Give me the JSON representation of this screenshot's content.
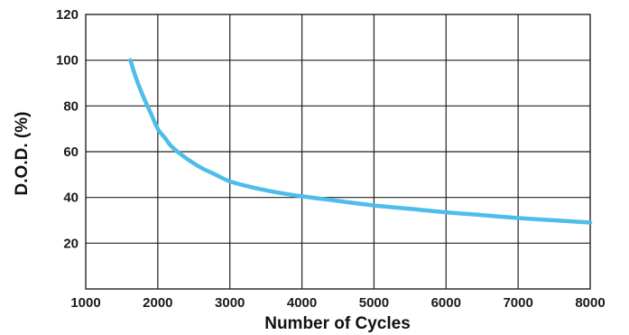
{
  "chart_data": {
    "type": "line",
    "title": "",
    "xlabel": "Number of Cycles",
    "ylabel": "D.O.D.  (%)",
    "xlim": [
      1000,
      8000
    ],
    "ylim": [
      0,
      120
    ],
    "xticks": [
      1000,
      2000,
      3000,
      4000,
      5000,
      6000,
      7000,
      8000
    ],
    "yticks": [
      20,
      40,
      60,
      80,
      100,
      120
    ],
    "grid": true,
    "legend": "none",
    "series": [
      {
        "color": "#4dbde9",
        "x": [
          1620,
          1700,
          1800,
          1900,
          2000,
          2100,
          2200,
          2400,
          2600,
          2800,
          3000,
          3300,
          3600,
          4000,
          4500,
          5000,
          5500,
          6000,
          6500,
          7000,
          7500,
          8000
        ],
        "y": [
          100,
          92,
          84,
          77,
          70,
          66,
          62,
          57,
          53,
          50,
          47,
          44.5,
          42.5,
          40.5,
          38.5,
          36.5,
          35,
          33.5,
          32.3,
          31,
          30,
          29
        ]
      }
    ]
  }
}
